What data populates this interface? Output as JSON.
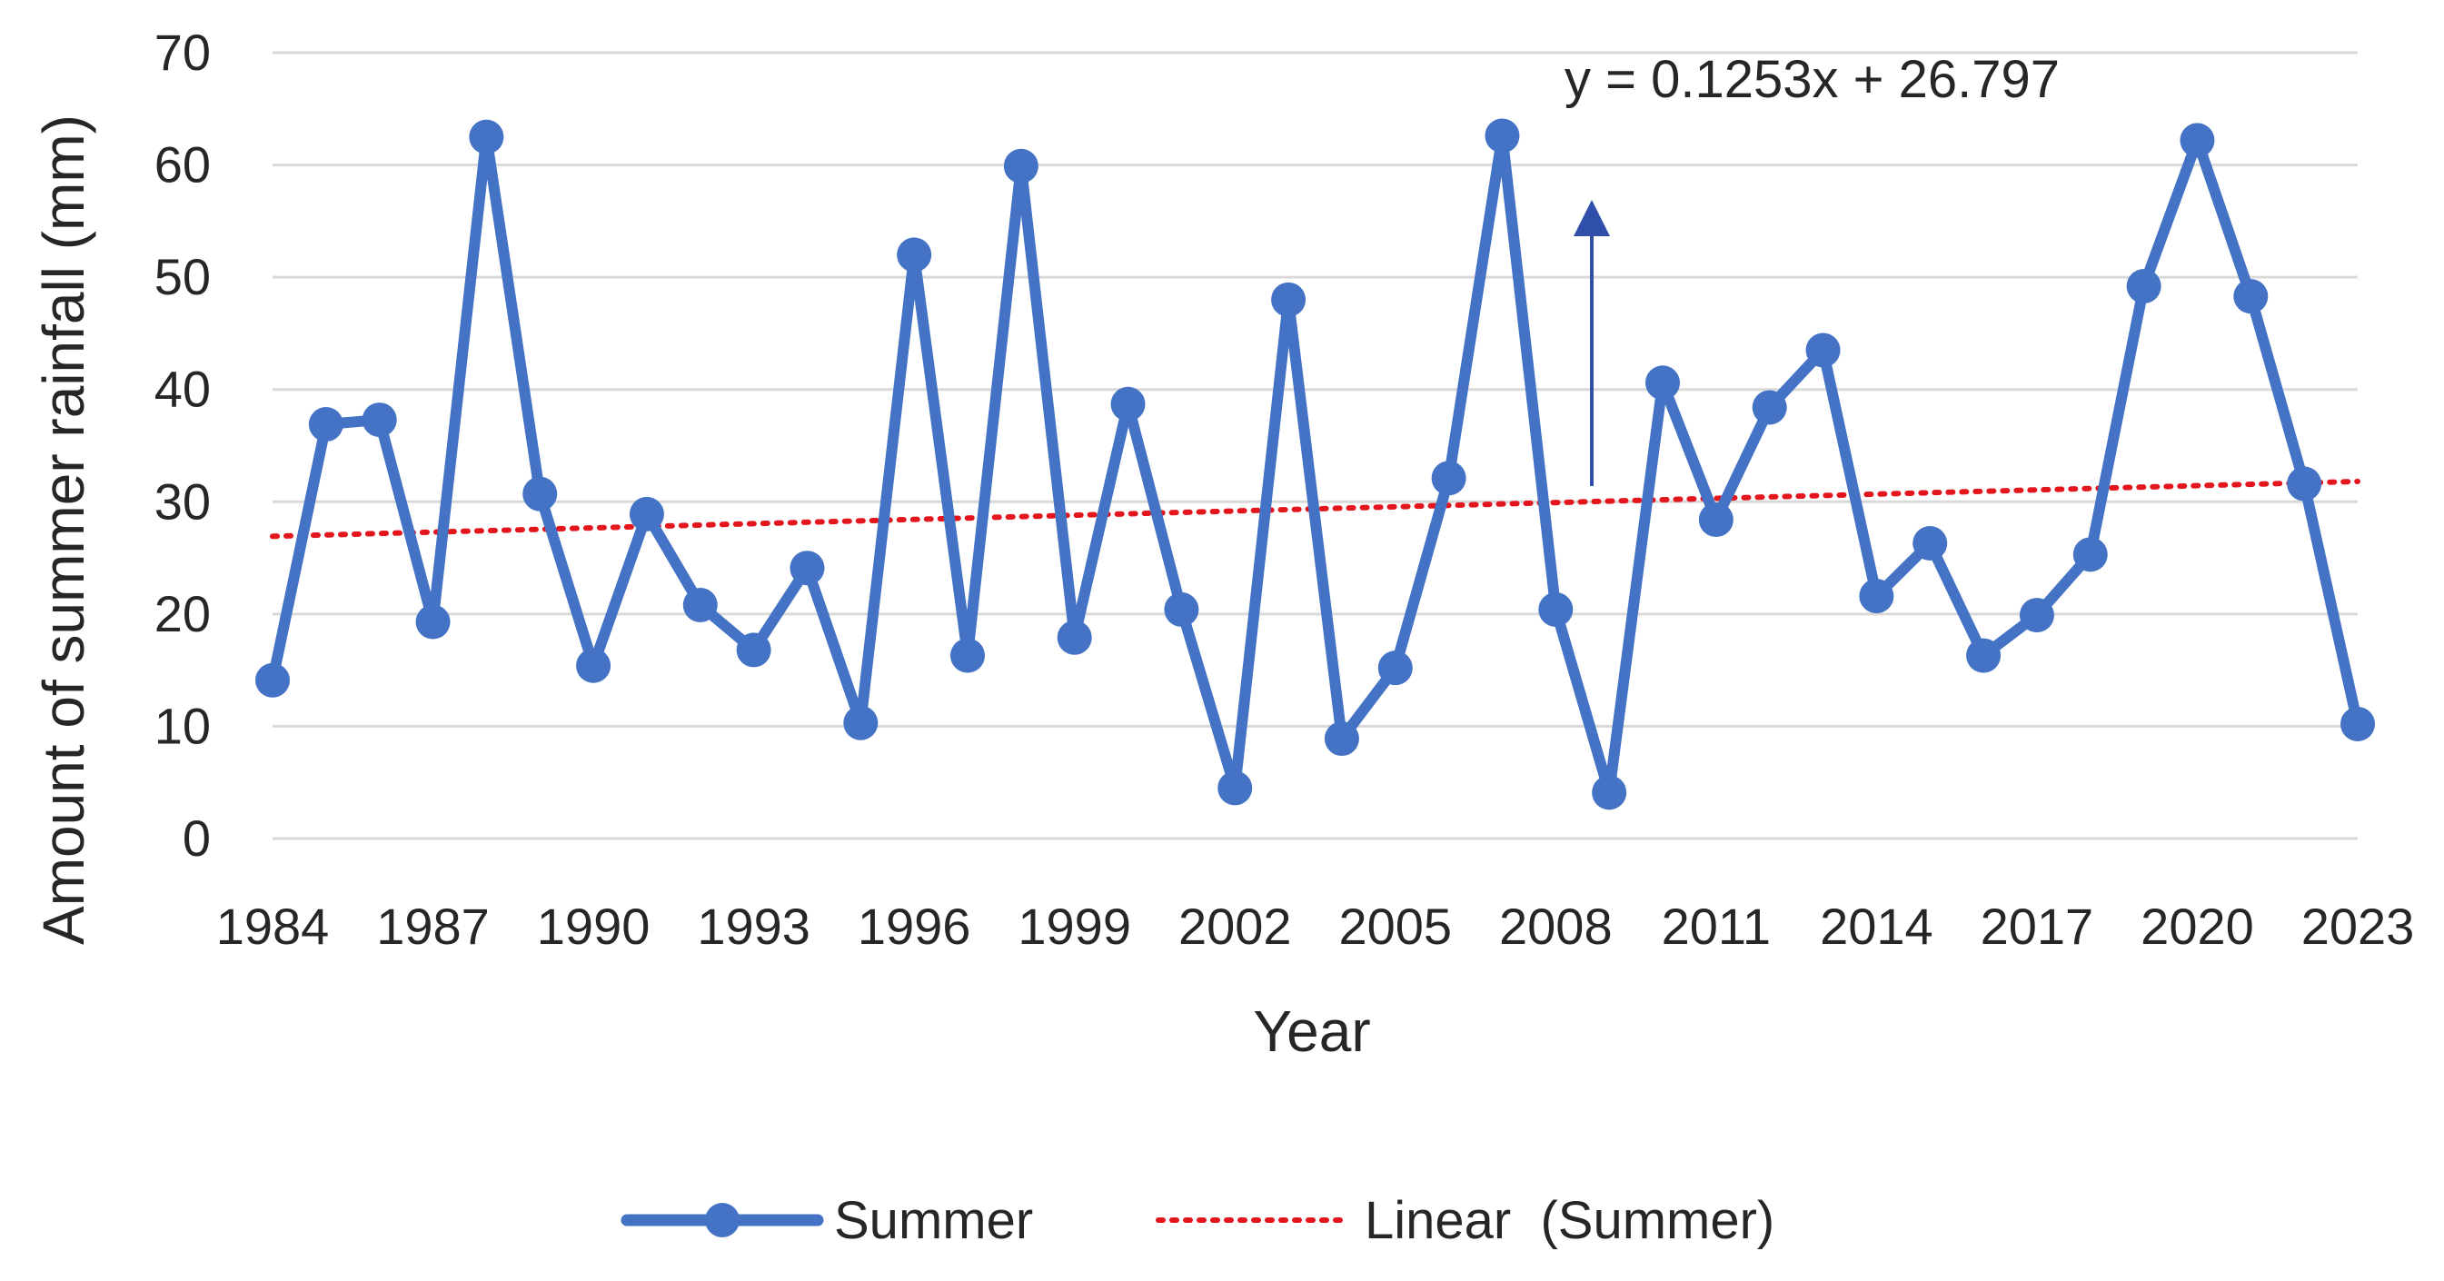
{
  "chart_data": {
    "type": "line",
    "title": "",
    "xlabel": "Year",
    "ylabel": "Amount of summer rainfall (mm)",
    "ylim": [
      0,
      70
    ],
    "xlim": [
      1984,
      2023
    ],
    "grid": true,
    "legend_position": "bottom",
    "y_ticks": [
      "0",
      "10",
      "20",
      "30",
      "40",
      "50",
      "60",
      "70"
    ],
    "x_ticks": [
      "1984",
      "1987",
      "1990",
      "1993",
      "1996",
      "1999",
      "2002",
      "2005",
      "2008",
      "2011",
      "2014",
      "2017",
      "2020",
      "2023"
    ],
    "x": [
      1984,
      1985,
      1986,
      1987,
      1988,
      1989,
      1990,
      1991,
      1992,
      1993,
      1994,
      1995,
      1996,
      1997,
      1998,
      1999,
      2000,
      2001,
      2002,
      2003,
      2004,
      2005,
      2006,
      2007,
      2008,
      2009,
      2010,
      2011,
      2012,
      2013,
      2014,
      2015,
      2016,
      2017,
      2018,
      2019,
      2020,
      2021,
      2022,
      2023
    ],
    "series": [
      {
        "name": "Summer",
        "color": "#4472C4",
        "values": [
          14.1,
          36.9,
          37.3,
          19.3,
          62.5,
          30.7,
          15.4,
          28.9,
          20.8,
          16.8,
          24.1,
          10.3,
          52.0,
          16.3,
          59.9,
          17.9,
          38.7,
          20.4,
          4.5,
          48.0,
          8.9,
          15.2,
          32.1,
          62.6,
          20.4,
          4.1,
          40.6,
          28.4,
          38.4,
          43.5,
          21.6,
          26.3,
          16.3,
          19.9,
          25.3,
          49.2,
          62.2,
          48.3,
          31.6,
          10.2
        ]
      }
    ],
    "trendline": {
      "name": "Linear (Summer)",
      "color": "#E3161D",
      "equation": "y = 0.1253x + 26.797",
      "slope": 0.1253,
      "intercept": 26.797
    }
  },
  "legend": {
    "series_label": "Summer",
    "trend_label": "Linear  (Summer)"
  }
}
